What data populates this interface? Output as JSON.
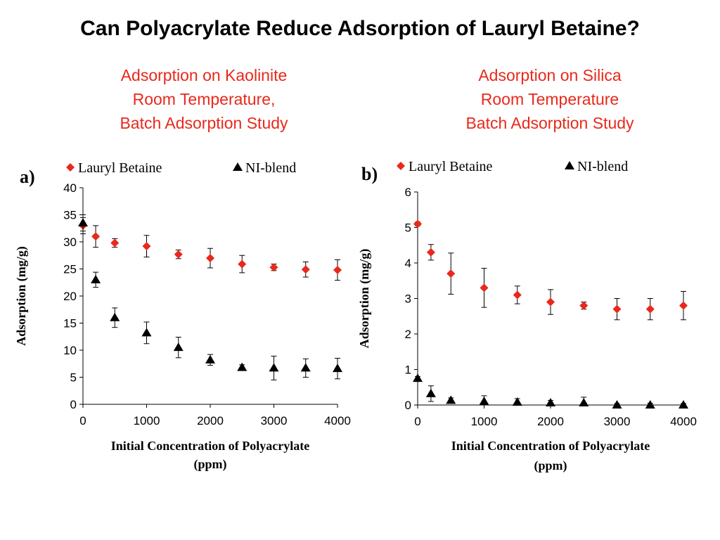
{
  "slide": {
    "title": "Can Polyacrylate Reduce Adsorption of Lauryl Betaine?",
    "left_caption": [
      "Adsorption on Kaolinite",
      "Room Temperature,",
      "Batch Adsorption Study"
    ],
    "right_caption": [
      "Adsorption on Silica",
      "Room Temperature",
      "Batch Adsorption Study"
    ]
  },
  "colors": {
    "lauryl_betaine": "#e8291c",
    "ni_blend": "#000000",
    "caption": "#e8291c"
  },
  "chart_data": [
    {
      "type": "scatter",
      "panel_label": "a)",
      "xlabel": [
        "Initial Concentration of Polyacrylate",
        "(ppm)"
      ],
      "ylabel": "Adsorption (mg/g)",
      "xlim": [
        0,
        4000
      ],
      "ylim": [
        0,
        40
      ],
      "xticks": [
        0,
        1000,
        2000,
        3000,
        4000
      ],
      "yticks": [
        0,
        5,
        10,
        15,
        20,
        25,
        30,
        35,
        40
      ],
      "grid": false,
      "legend_position": "top",
      "series": [
        {
          "name": "Lauryl Betaine",
          "marker": "diamond",
          "color": "#e8291c",
          "x": [
            0,
            200,
            500,
            1000,
            1500,
            2000,
            2500,
            3000,
            3500,
            4000
          ],
          "y": [
            33.0,
            31.0,
            29.8,
            29.2,
            27.7,
            27.0,
            25.9,
            25.3,
            24.9,
            24.8
          ],
          "err": [
            1.5,
            2.0,
            0.8,
            2.0,
            0.8,
            1.8,
            1.6,
            0.6,
            1.4,
            1.9
          ]
        },
        {
          "name": "NI-blend",
          "marker": "triangle",
          "color": "#000000",
          "x": [
            0,
            200,
            500,
            1000,
            1500,
            2000,
            2500,
            3000,
            3500,
            4000
          ],
          "y": [
            33.5,
            23.0,
            16.0,
            13.2,
            10.5,
            8.2,
            6.8,
            6.7,
            6.7,
            6.6
          ],
          "err": [
            1.5,
            1.4,
            1.8,
            2.0,
            1.9,
            1.0,
            0.5,
            2.2,
            1.7,
            1.9
          ]
        }
      ]
    },
    {
      "type": "scatter",
      "panel_label": "b)",
      "xlabel": [
        "Initial Concentration of Polyacrylate",
        "(ppm)"
      ],
      "ylabel": "Adsorption (mg/g)",
      "xlim": [
        0,
        4000
      ],
      "ylim": [
        0,
        6
      ],
      "xticks": [
        0,
        1000,
        2000,
        3000,
        4000
      ],
      "yticks": [
        0,
        1,
        2,
        3,
        4,
        5,
        6
      ],
      "grid": false,
      "legend_position": "top",
      "series": [
        {
          "name": "Lauryl Betaine",
          "marker": "diamond",
          "color": "#e8291c",
          "x": [
            0,
            200,
            500,
            1000,
            1500,
            2000,
            2500,
            3000,
            3500,
            4000
          ],
          "y": [
            5.1,
            4.3,
            3.7,
            3.3,
            3.1,
            2.9,
            2.8,
            2.7,
            2.7,
            2.8
          ],
          "err": [
            0.05,
            0.22,
            0.58,
            0.55,
            0.25,
            0.35,
            0.1,
            0.3,
            0.3,
            0.4
          ]
        },
        {
          "name": "NI-blend",
          "marker": "triangle",
          "color": "#000000",
          "x": [
            0,
            200,
            500,
            1000,
            1500,
            2000,
            2500,
            3000,
            3500,
            4000
          ],
          "y": [
            0.75,
            0.32,
            0.13,
            0.1,
            0.08,
            0.06,
            0.06,
            0.0,
            0.0,
            0.0
          ],
          "err": [
            0.05,
            0.22,
            0.07,
            0.16,
            0.1,
            0.07,
            0.16,
            0.04,
            0.05,
            0.04
          ]
        }
      ]
    }
  ]
}
